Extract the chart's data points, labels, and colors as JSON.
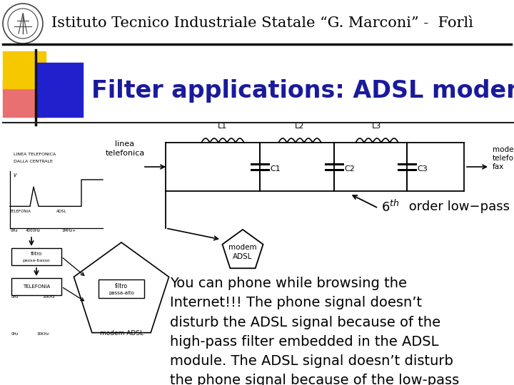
{
  "bg_color": "#ffffff",
  "header_text": "Istituto Tecnico Industriale Statale “G. Marconi” -  Forlì",
  "header_fontsize": 15,
  "header_color": "#000000",
  "title_text": "Filter applications: ADSL modem",
  "title_color": "#1a1a9c",
  "title_fontsize": 24,
  "order_text": "6",
  "order_suffix": " order low-pass",
  "body_text": "You can phone while browsing the\nInternet!!! The phone signal doesn’t\ndisturb the ADSL signal because of the\nhigh-pass filter embedded in the ADSL\nmodule. The ADSL signal doesn’t disturb\nthe phone signal because of the low-pass\nfilter inserted just before the phone\nreceiver.",
  "body_fontsize": 14,
  "body_color": "#000000"
}
